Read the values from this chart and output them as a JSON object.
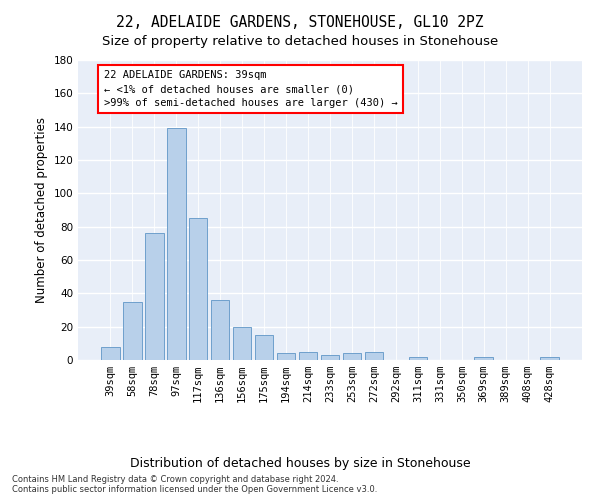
{
  "title": "22, ADELAIDE GARDENS, STONEHOUSE, GL10 2PZ",
  "subtitle": "Size of property relative to detached houses in Stonehouse",
  "xlabel": "Distribution of detached houses by size in Stonehouse",
  "ylabel": "Number of detached properties",
  "categories": [
    "39sqm",
    "58sqm",
    "78sqm",
    "97sqm",
    "117sqm",
    "136sqm",
    "156sqm",
    "175sqm",
    "194sqm",
    "214sqm",
    "233sqm",
    "253sqm",
    "272sqm",
    "292sqm",
    "311sqm",
    "331sqm",
    "350sqm",
    "369sqm",
    "389sqm",
    "408sqm",
    "428sqm"
  ],
  "values": [
    8,
    35,
    76,
    139,
    85,
    36,
    20,
    15,
    4,
    5,
    3,
    4,
    5,
    0,
    2,
    0,
    0,
    2,
    0,
    0,
    2
  ],
  "bar_color": "#b8d0ea",
  "bar_edge_color": "#6fa0cc",
  "background_color": "#e8eef8",
  "grid_color": "#ffffff",
  "fig_color": "#ffffff",
  "ylim": [
    0,
    180
  ],
  "yticks": [
    0,
    20,
    40,
    60,
    80,
    100,
    120,
    140,
    160,
    180
  ],
  "annotation_box_text": "22 ADELAIDE GARDENS: 39sqm\n← <1% of detached houses are smaller (0)\n>99% of semi-detached houses are larger (430) →",
  "footer_line1": "Contains HM Land Registry data © Crown copyright and database right 2024.",
  "footer_line2": "Contains public sector information licensed under the Open Government Licence v3.0.",
  "title_fontsize": 10.5,
  "subtitle_fontsize": 9.5,
  "tick_fontsize": 7.5,
  "ylabel_fontsize": 8.5,
  "xlabel_fontsize": 9,
  "annotation_fontsize": 7.5,
  "footer_fontsize": 6
}
